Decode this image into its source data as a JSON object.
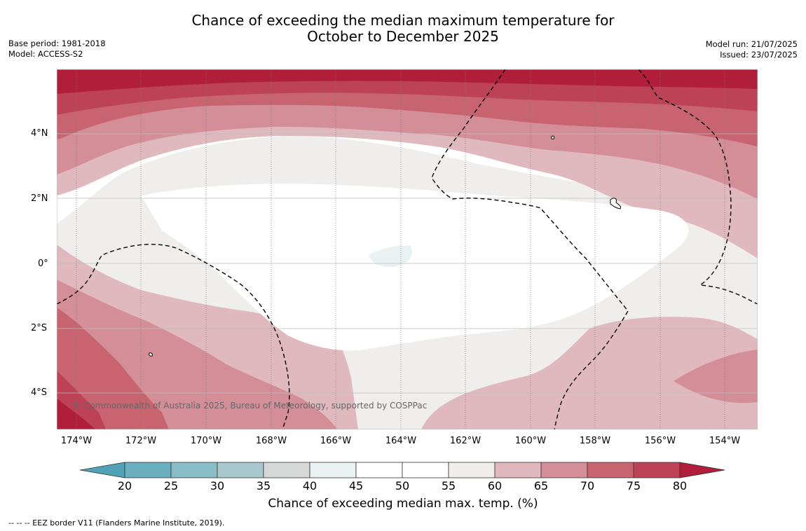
{
  "title": {
    "line1": "Chance of exceeding the median maximum temperature for",
    "line2": "October to December 2025"
  },
  "meta": {
    "base_period": "Base period: 1981-2018",
    "model": "Model: ACCESS-S2",
    "model_run": "Model run: 21/07/2025",
    "issued": "Issued: 23/07/2025"
  },
  "copyright": "© Commonwealth of Australia 2025, Bureau of Meteorology, supported by COSPPac",
  "lat_labels": [
    "4°N",
    "2°N",
    "0°",
    "2°S",
    "4°S"
  ],
  "lon_labels": [
    "174°W",
    "172°W",
    "170°W",
    "168°W",
    "166°W",
    "164°W",
    "162°W",
    "160°W",
    "158°W",
    "156°W",
    "154°W"
  ],
  "colorbar": {
    "title": "Chance of exceeding median max. temp. (%)",
    "ticks": [
      "20",
      "25",
      "30",
      "35",
      "40",
      "45",
      "50",
      "55",
      "60",
      "65",
      "70",
      "75",
      "80"
    ],
    "colors": {
      "below_20": "#4fa3b4",
      "20_25": "#6aafbf",
      "25_30": "#89bdc8",
      "30_35": "#a9c8cd",
      "35_40": "#d6d8d8",
      "40_45": "#e9f1f3",
      "45_50": "#ffffff",
      "50_55": "#ffffff",
      "55_60": "#efeeec",
      "60_65": "#e0b9be",
      "65_70": "#d48e98",
      "70_75": "#c76470",
      "75_80": "#bd4256",
      "above_80": "#b01e3a"
    }
  },
  "footnote": "--  --  -- EEZ border V11 (Flanders Marine Institute, 2019)."
}
